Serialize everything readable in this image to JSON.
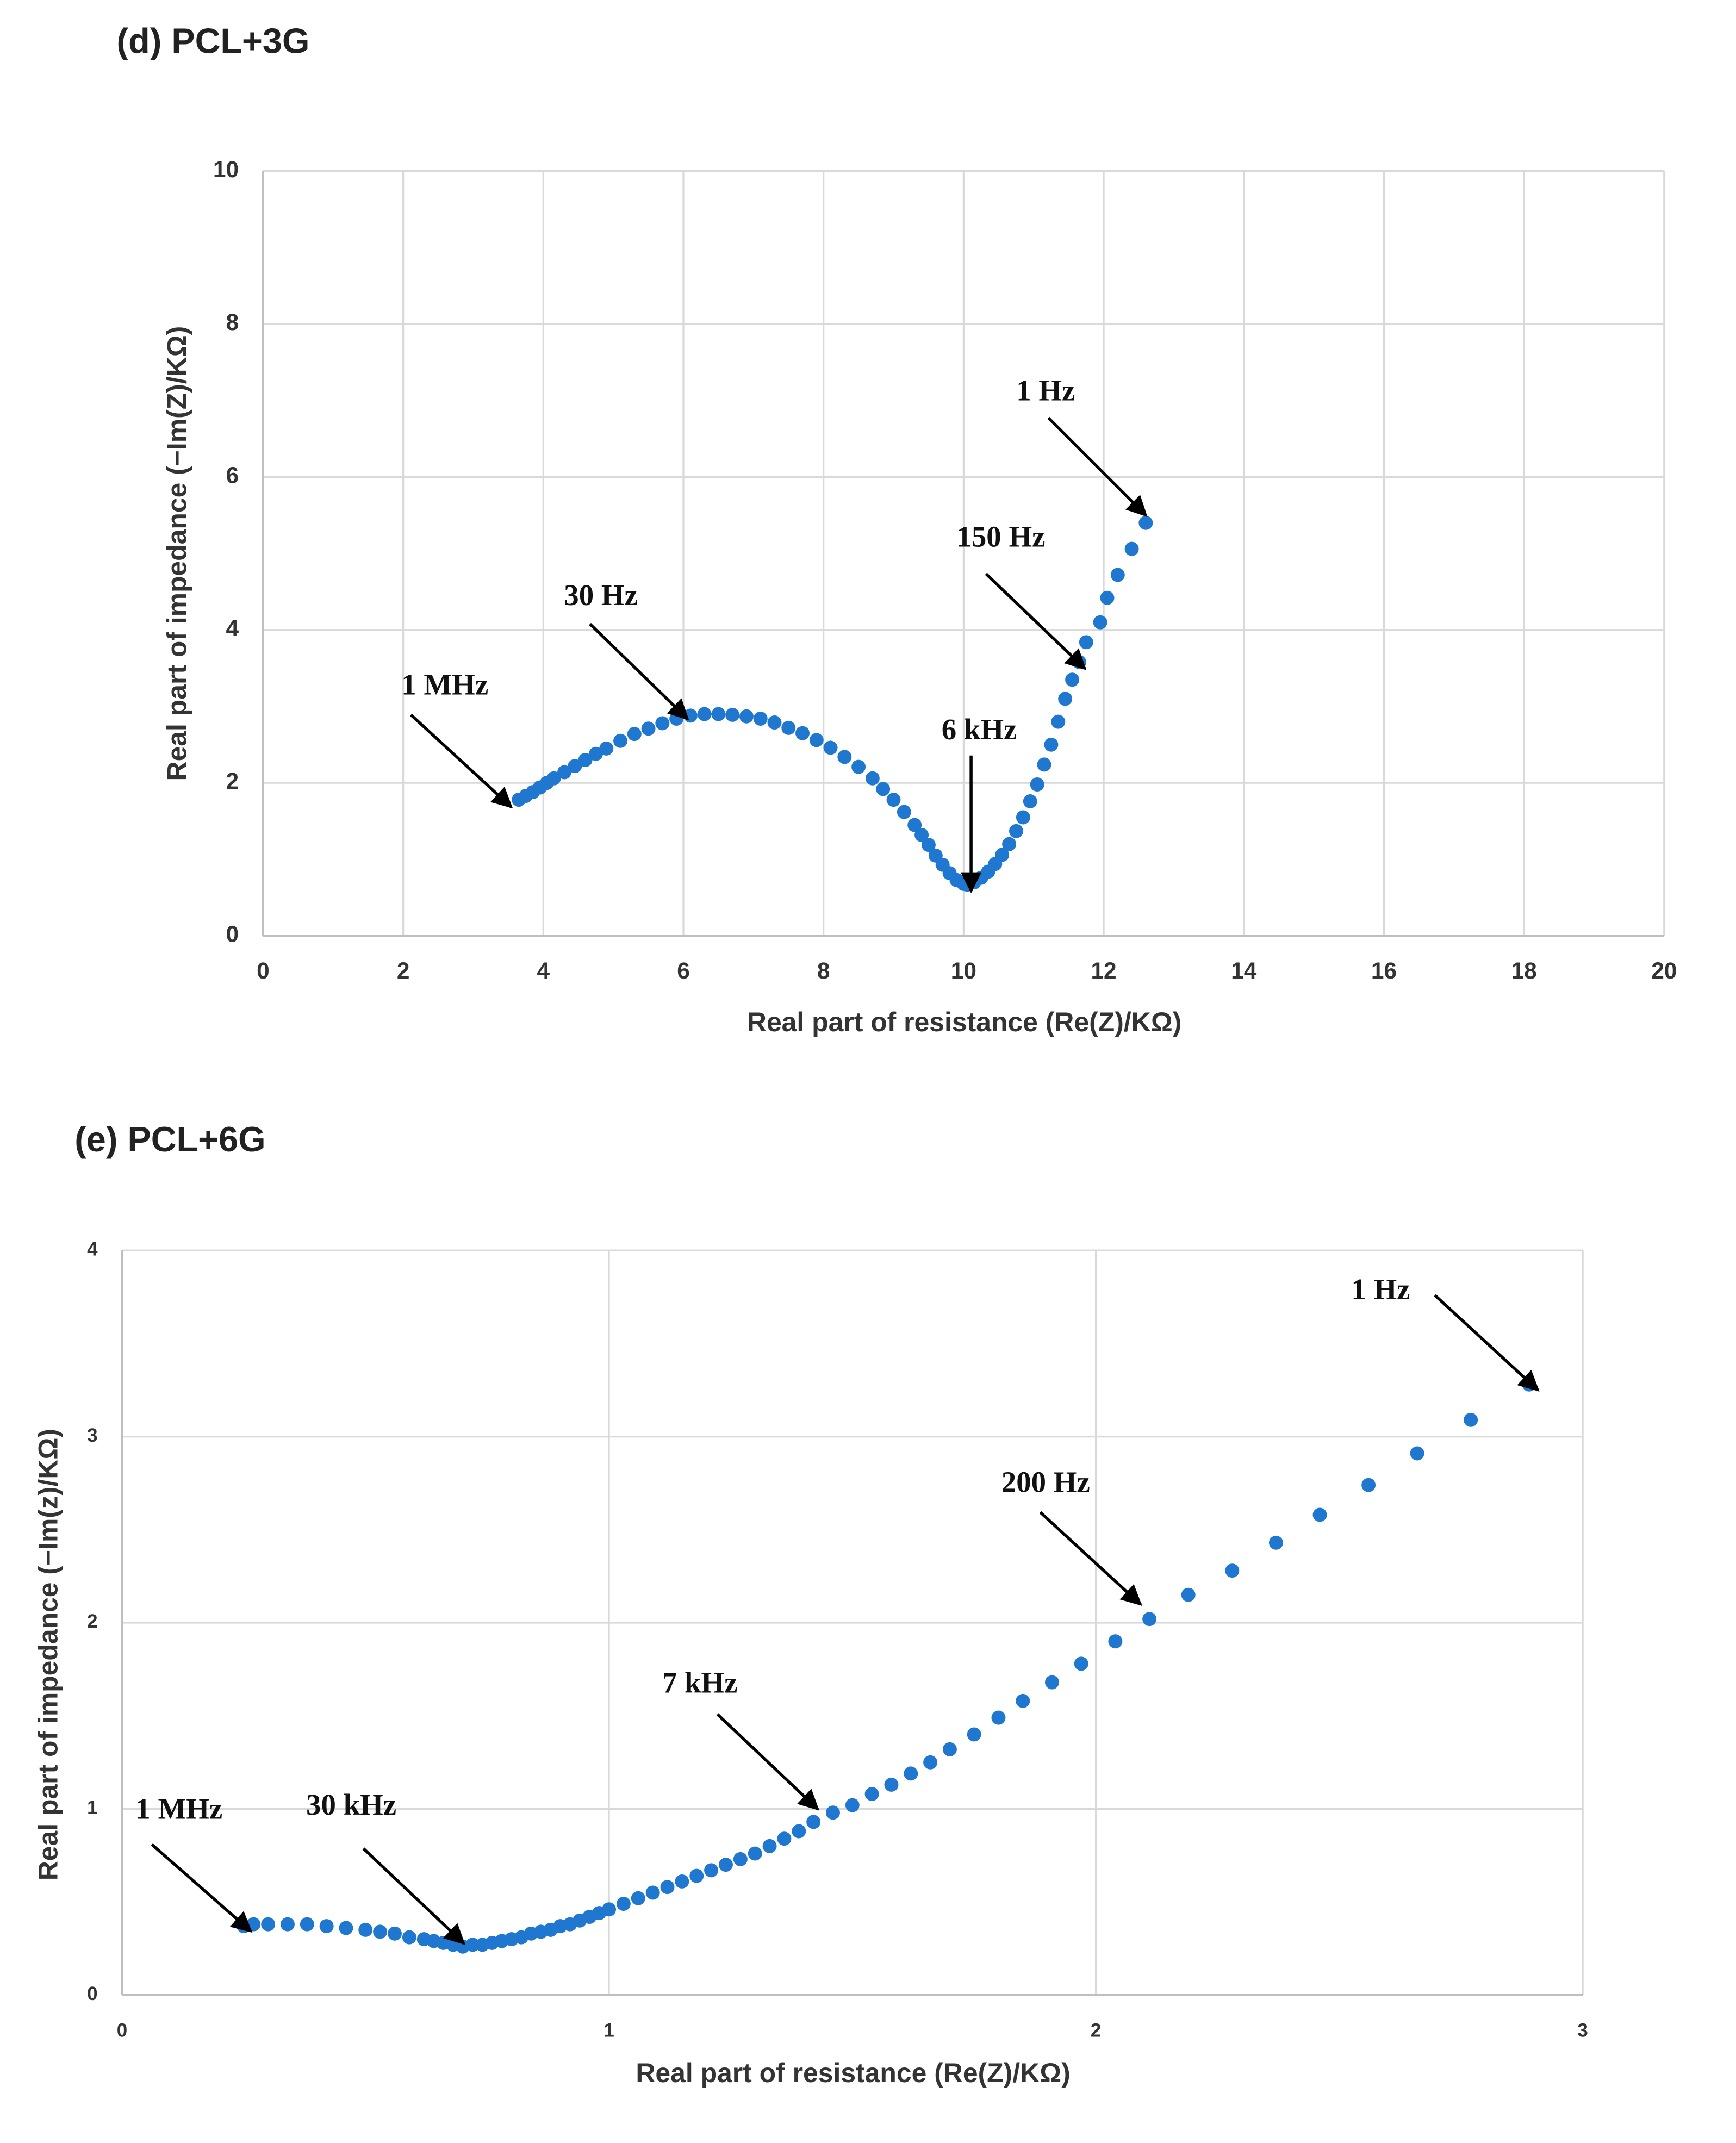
{
  "chart_data": [
    {
      "type": "scatter",
      "title": "(d) PCL+3G",
      "x_label": "Real part of resistance (Re(Z)/KΩ)",
      "y_label": "Real part of impedance (−Im(Z)/KΩ)",
      "xlim": [
        0,
        20
      ],
      "ylim": [
        0,
        10
      ],
      "xticks": [
        0,
        2,
        4,
        6,
        8,
        10,
        12,
        14,
        16,
        18,
        20
      ],
      "yticks": [
        0,
        2,
        4,
        6,
        8,
        10
      ],
      "grid": true,
      "color": "#1f77d0",
      "x": [
        3.65,
        3.75,
        3.85,
        3.95,
        4.05,
        4.15,
        4.3,
        4.45,
        4.6,
        4.75,
        4.9,
        5.1,
        5.3,
        5.5,
        5.7,
        5.9,
        6.1,
        6.3,
        6.5,
        6.7,
        6.9,
        7.1,
        7.3,
        7.5,
        7.7,
        7.9,
        8.1,
        8.3,
        8.5,
        8.7,
        8.85,
        9.0,
        9.15,
        9.3,
        9.4,
        9.5,
        9.6,
        9.7,
        9.8,
        9.9,
        10.0,
        10.05,
        10.15,
        10.25,
        10.35,
        10.45,
        10.55,
        10.65,
        10.75,
        10.85,
        10.95,
        11.05,
        11.15,
        11.25,
        11.35,
        11.45,
        11.55,
        11.65,
        11.75,
        11.95,
        12.05,
        12.2,
        12.4,
        12.6
      ],
      "values": [
        1.78,
        1.83,
        1.88,
        1.94,
        2.0,
        2.06,
        2.14,
        2.22,
        2.3,
        2.38,
        2.45,
        2.55,
        2.64,
        2.71,
        2.78,
        2.84,
        2.88,
        2.9,
        2.9,
        2.89,
        2.87,
        2.84,
        2.79,
        2.72,
        2.65,
        2.56,
        2.46,
        2.34,
        2.21,
        2.06,
        1.92,
        1.78,
        1.62,
        1.45,
        1.32,
        1.19,
        1.05,
        0.93,
        0.82,
        0.73,
        0.68,
        0.67,
        0.7,
        0.76,
        0.84,
        0.94,
        1.06,
        1.2,
        1.37,
        1.55,
        1.76,
        1.98,
        2.24,
        2.5,
        2.8,
        3.1,
        3.35,
        3.58,
        3.84,
        4.1,
        4.42,
        4.72,
        5.06,
        5.4
      ],
      "annotations": [
        "1 Hz",
        "150 Hz",
        "30 Hz",
        "1 MHz",
        "6 kHz"
      ]
    },
    {
      "type": "scatter",
      "title": "(e) PCL+6G",
      "x_label": "Real part of resistance (Re(Z)/KΩ)",
      "y_label": "Real part of impedance (−Im(z)/KΩ)",
      "xlim": [
        0,
        3
      ],
      "ylim": [
        0,
        4
      ],
      "xticks": [
        0,
        1,
        2,
        3
      ],
      "yticks": [
        0,
        1,
        2,
        3,
        4
      ],
      "grid": true,
      "color": "#1f77d0",
      "x": [
        0.25,
        0.27,
        0.3,
        0.34,
        0.38,
        0.42,
        0.46,
        0.5,
        0.53,
        0.56,
        0.59,
        0.62,
        0.64,
        0.66,
        0.68,
        0.7,
        0.72,
        0.74,
        0.76,
        0.78,
        0.8,
        0.82,
        0.84,
        0.86,
        0.88,
        0.9,
        0.92,
        0.94,
        0.96,
        0.98,
        1.0,
        1.03,
        1.06,
        1.09,
        1.12,
        1.15,
        1.18,
        1.21,
        1.24,
        1.27,
        1.3,
        1.33,
        1.36,
        1.39,
        1.42,
        1.46,
        1.5,
        1.54,
        1.58,
        1.62,
        1.66,
        1.7,
        1.75,
        1.8,
        1.85,
        1.91,
        1.97,
        2.04,
        2.11,
        2.19,
        2.28,
        2.37,
        2.46,
        2.56,
        2.66,
        2.77,
        2.89
      ],
      "values": [
        0.37,
        0.38,
        0.38,
        0.38,
        0.38,
        0.37,
        0.36,
        0.35,
        0.34,
        0.33,
        0.31,
        0.3,
        0.29,
        0.28,
        0.27,
        0.26,
        0.27,
        0.27,
        0.28,
        0.29,
        0.3,
        0.31,
        0.33,
        0.34,
        0.35,
        0.37,
        0.38,
        0.4,
        0.42,
        0.44,
        0.46,
        0.49,
        0.52,
        0.55,
        0.58,
        0.61,
        0.64,
        0.67,
        0.7,
        0.73,
        0.76,
        0.8,
        0.84,
        0.88,
        0.93,
        0.98,
        1.02,
        1.08,
        1.13,
        1.19,
        1.25,
        1.32,
        1.4,
        1.49,
        1.58,
        1.68,
        1.78,
        1.9,
        2.02,
        2.15,
        2.28,
        2.43,
        2.58,
        2.74,
        2.91,
        3.09,
        3.28
      ],
      "annotations": [
        "1 Hz",
        "200 Hz",
        "7 kHz",
        "1 MHz",
        "30 kHz"
      ]
    }
  ]
}
